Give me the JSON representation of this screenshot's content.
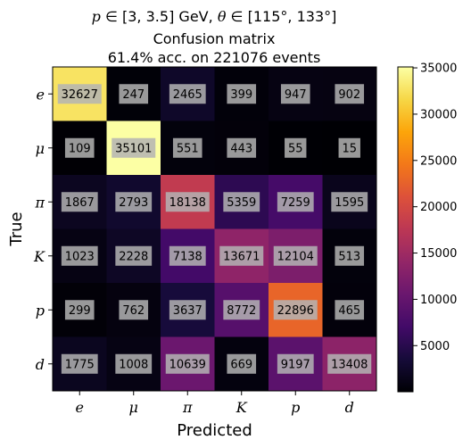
{
  "chart_data": {
    "type": "heatmap",
    "title_lines": [
      "p ∈ [3, 3.5] GeV, θ ∈ [115°, 133°]",
      "Confusion matrix",
      "61.4% acc. on 221076 events"
    ],
    "xlabel": "Predicted",
    "ylabel": "True",
    "x_categories": [
      "e",
      "μ",
      "π",
      "K",
      "p",
      "d"
    ],
    "y_categories": [
      "e",
      "μ",
      "π",
      "K",
      "p",
      "d"
    ],
    "values": [
      [
        32627,
        247,
        2465,
        399,
        947,
        902
      ],
      [
        109,
        35101,
        551,
        443,
        55,
        15
      ],
      [
        1867,
        2793,
        18138,
        5359,
        7259,
        1595
      ],
      [
        1023,
        2228,
        7138,
        13671,
        12104,
        513
      ],
      [
        299,
        762,
        3637,
        8772,
        22896,
        465
      ],
      [
        1775,
        1008,
        10639,
        669,
        9197,
        13408
      ]
    ],
    "colormap": "inferno",
    "colorbar": {
      "range": [
        15,
        35101
      ],
      "ticks": [
        5000,
        10000,
        15000,
        20000,
        25000,
        30000,
        35000
      ],
      "tick_labels": [
        "5000",
        "10000",
        "15000",
        "20000",
        "25000",
        "30000",
        "35000"
      ]
    },
    "cell_label_box_color": "#b4b4b4"
  }
}
